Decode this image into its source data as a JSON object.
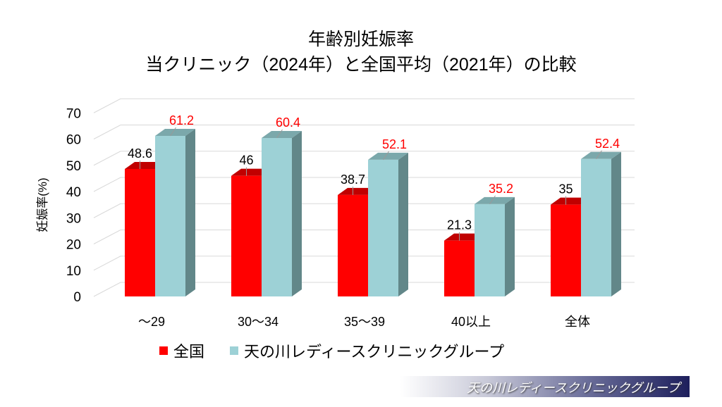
{
  "chart_data": {
    "type": "bar",
    "title": [
      "年齢別妊娠率",
      "当クリニック（2024年）と全国平均（2021年）の比較"
    ],
    "xlabel": "",
    "ylabel": "妊娠率(%)",
    "ylim": [
      0,
      70
    ],
    "yticks": [
      0,
      10,
      20,
      30,
      40,
      50,
      60,
      70
    ],
    "grid": true,
    "legend_position": "bottom",
    "categories": [
      "～29",
      "30～34",
      "35～39",
      "40以上",
      "全体"
    ],
    "series": [
      {
        "name": "全国",
        "color": "#ff0000",
        "label_color": "#000000",
        "values": [
          48.6,
          46,
          38.7,
          21.3,
          35
        ]
      },
      {
        "name": "天の川レディースクリニックグループ",
        "color": "#9dd1d6",
        "label_color": "#ff0000",
        "values": [
          61.2,
          60.4,
          52.1,
          35.2,
          52.4
        ]
      }
    ]
  },
  "footer": {
    "brand": "天の川レディースクリニックグループ"
  }
}
